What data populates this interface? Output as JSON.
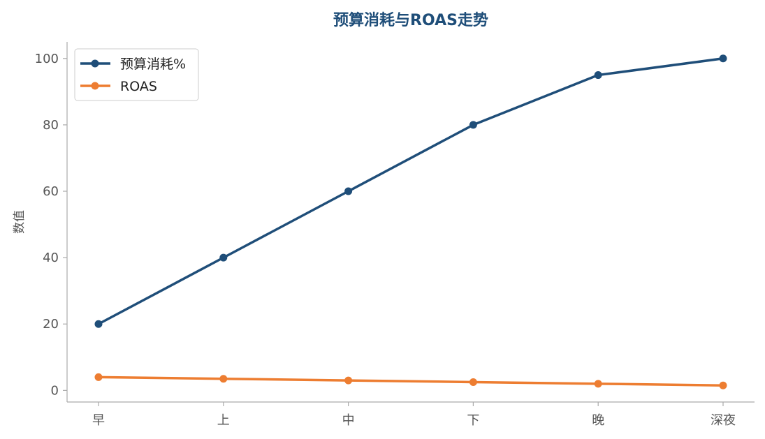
{
  "chart_data": {
    "type": "line",
    "title": "预算消耗与ROAS走势",
    "xlabel": "",
    "ylabel": "数值",
    "categories": [
      "早",
      "上",
      "中",
      "下",
      "晚",
      "深夜"
    ],
    "yticks": [
      0,
      20,
      40,
      60,
      80,
      100
    ],
    "ylim": [
      -3.5,
      105
    ],
    "grid": false,
    "legend_position": "top-left",
    "series": [
      {
        "name": "预算消耗%",
        "values": [
          20,
          40,
          60,
          80,
          95,
          100
        ],
        "color": "#1f4e79"
      },
      {
        "name": "ROAS",
        "values": [
          4.0,
          3.5,
          3.0,
          2.5,
          2.0,
          1.5
        ],
        "color": "#ed7d31"
      }
    ],
    "title_color": "#1f4e79"
  }
}
